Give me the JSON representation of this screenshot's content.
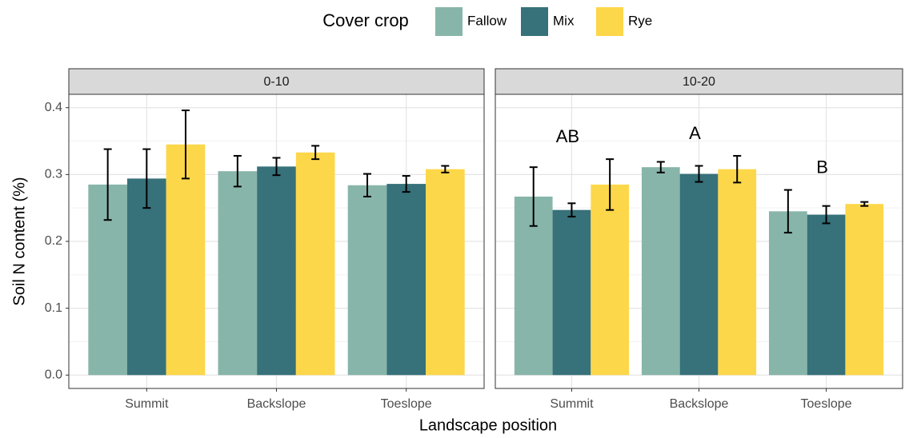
{
  "chart_data": {
    "type": "bar",
    "legend_title": "Cover crop",
    "legend_position": "top",
    "y_label": "Soil N content (%)",
    "x_label": "Landscape position",
    "ylim": [
      -0.02,
      0.42
    ],
    "yticks": [
      {
        "value": 0,
        "label": "0.0"
      },
      0.1,
      0.2,
      0.3,
      0.4
    ],
    "grid": true,
    "categories": [
      "Summit",
      "Backslope",
      "Toeslope"
    ],
    "facets": [
      {
        "title": "0-10",
        "letters": [
          null,
          null,
          null
        ]
      },
      {
        "title": "10-20",
        "letters": [
          "AB",
          "A",
          "B"
        ]
      }
    ],
    "series": [
      {
        "name": "Fallow",
        "color": "#88b5a9",
        "values": [
          [
            0.285,
            0.305,
            0.284
          ],
          [
            0.267,
            0.311,
            0.245
          ]
        ],
        "errors": [
          [
            0.053,
            0.023,
            0.017
          ],
          [
            0.044,
            0.008,
            0.032
          ]
        ]
      },
      {
        "name": "Mix",
        "color": "#37717a",
        "values": [
          [
            0.294,
            0.312,
            0.286
          ],
          [
            0.247,
            0.301,
            0.24
          ]
        ],
        "errors": [
          [
            0.044,
            0.013,
            0.012
          ],
          [
            0.01,
            0.012,
            0.013
          ]
        ]
      },
      {
        "name": "Rye",
        "color": "#fdd74a",
        "values": [
          [
            0.345,
            0.333,
            0.308
          ],
          [
            0.285,
            0.308,
            0.256
          ]
        ],
        "errors": [
          [
            0.051,
            0.01,
            0.005
          ],
          [
            0.038,
            0.02,
            0.003
          ]
        ]
      }
    ]
  }
}
